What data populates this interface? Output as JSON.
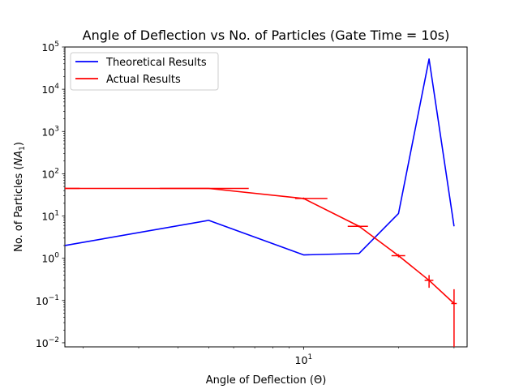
{
  "chart_data": {
    "type": "line",
    "title": "Angle of Deflection vs No. of Particles (Gate Time = 10s)",
    "xlabel": "Angle of Deflection (Θ)",
    "ylabel_prefix": "No. of Particles (",
    "ylabel_var": "NA",
    "ylabel_sub": "1",
    "ylabel_suffix": ")",
    "xscale": "log",
    "yscale": "log",
    "xlim": [
      1.75,
      33
    ],
    "ylim": [
      0.008,
      100000
    ],
    "x_major_ticks": [
      {
        "value": 10,
        "base": "10",
        "exp": "1"
      }
    ],
    "x_minor_ticks": [
      2,
      3,
      4,
      5,
      6,
      7,
      8,
      9,
      20,
      30
    ],
    "y_ticks": [
      {
        "value": 0.01,
        "base": "10",
        "exp": "−2"
      },
      {
        "value": 0.1,
        "base": "10",
        "exp": "−1"
      },
      {
        "value": 1,
        "base": "10",
        "exp": "0"
      },
      {
        "value": 10,
        "base": "10",
        "exp": "1"
      },
      {
        "value": 100,
        "base": "10",
        "exp": "2"
      },
      {
        "value": 1000,
        "base": "10",
        "exp": "3"
      },
      {
        "value": 10000,
        "base": "10",
        "exp": "4"
      },
      {
        "value": 100000,
        "base": "10",
        "exp": "5"
      }
    ],
    "legend_position": "upper-left",
    "series": [
      {
        "name": "Theoretical Results",
        "color": "#0000ff",
        "points": [
          [
            1.75,
            2.0
          ],
          [
            5,
            7.9
          ],
          [
            10,
            1.2
          ],
          [
            15,
            1.3
          ],
          [
            20,
            11.5
          ],
          [
            25,
            52000
          ],
          [
            30,
            5.7
          ]
        ]
      },
      {
        "name": "Actual Results",
        "color": "#ff0000",
        "points": [
          [
            1.75,
            45
          ],
          [
            5,
            45
          ],
          [
            10,
            26
          ],
          [
            15,
            5.7
          ],
          [
            20,
            1.15
          ],
          [
            25,
            0.3
          ],
          [
            30,
            0.085
          ]
        ],
        "error_bars": [
          {
            "x": 1.75,
            "y": 45,
            "xerr": [
              0.4,
              0.2
            ],
            "yerr": [
              2,
              3
            ]
          },
          {
            "x": 5,
            "y": 45,
            "xerr": [
              1.5,
              1.7
            ],
            "yerr": [
              1,
              1
            ]
          },
          {
            "x": 10,
            "y": 26,
            "xerr": [
              0.6,
              1.9
            ],
            "yerr": [
              1.4,
              1.4
            ]
          },
          {
            "x": 15,
            "y": 5.7,
            "xerr": [
              1.2,
              1.0
            ],
            "yerr": [
              0.3,
              0.3
            ]
          },
          {
            "x": 20,
            "y": 1.15,
            "xerr": [
              1.0,
              1.0
            ],
            "yerr": [
              0.1,
              0.1
            ]
          },
          {
            "x": 25,
            "y": 0.3,
            "xerr": [
              0.8,
              0.8
            ],
            "yerr": [
              0.1,
              0.1
            ]
          },
          {
            "x": 30,
            "y": 0.085,
            "xerr": [
              0.6,
              0.6
            ],
            "yerr": [
              0.083,
              0.1
            ]
          }
        ]
      }
    ]
  }
}
